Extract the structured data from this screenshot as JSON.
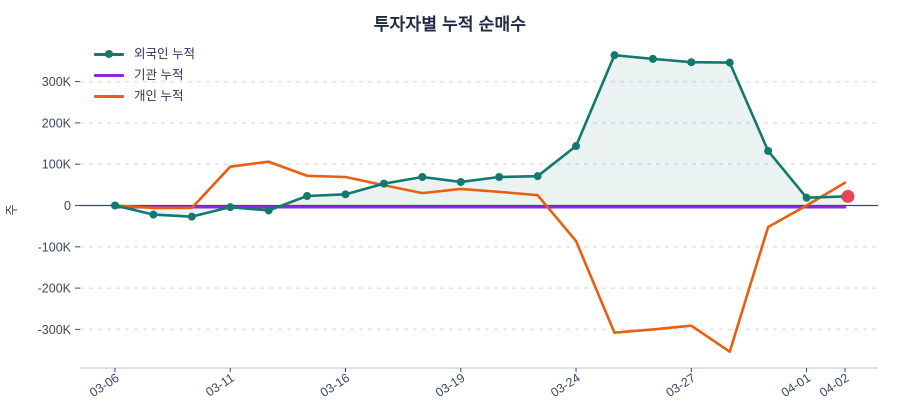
{
  "title_text": "투자자별 누적 순매수",
  "colors": {
    "foreign": "#12796e",
    "institution": "#8a2be2",
    "individual": "#e95f0e",
    "foreign_fill": "rgba(18,121,110,0.09)",
    "last_point": "#ea4556",
    "zero_line": "#3b4861",
    "grid": "#e4e6ea",
    "axis_line": "#c9cdd6",
    "tick_text": "#3c4860",
    "title_text": "#1e2942"
  },
  "chart_data": {
    "type": "line",
    "title": "투자자별 누적 순매수",
    "xlabel": "",
    "ylabel": "주",
    "grid": true,
    "legend_position": "upper left",
    "x": [
      "03-06",
      "03-09",
      "03-10",
      "03-11",
      "03-12",
      "03-13",
      "03-16",
      "03-17",
      "03-18",
      "03-19",
      "03-20",
      "03-23",
      "03-24",
      "03-25",
      "03-26",
      "03-27",
      "03-30",
      "03-31",
      "04-01",
      "04-02"
    ],
    "x_tick_labels": [
      "03-06",
      "03-11",
      "03-16",
      "03-19",
      "03-24",
      "03-27",
      "04-01",
      "04-02"
    ],
    "x_tick_indices": [
      0,
      3,
      6,
      9,
      12,
      15,
      18,
      19
    ],
    "y_tick_labels": [
      "300K",
      "200K",
      "100K",
      "0",
      "-100K",
      "-200K",
      "-300K"
    ],
    "y_tick_values": [
      300000,
      200000,
      100000,
      0,
      -100000,
      -200000,
      -300000
    ],
    "ylim": [
      -390000,
      400000
    ],
    "series": [
      {
        "name": "외국인 누적",
        "color": "#12796e",
        "marker": true,
        "fill_to_zero": true,
        "values": [
          0,
          -22000,
          -27000,
          -4000,
          -12000,
          23000,
          27000,
          53000,
          69000,
          57000,
          69000,
          71000,
          144000,
          364000,
          355000,
          347000,
          346000,
          132000,
          19000,
          22000
        ]
      },
      {
        "name": "기관 누적",
        "color": "#8a2be2",
        "marker": false,
        "fill_to_zero": false,
        "values": [
          -4000,
          -4000,
          -4000,
          -4000,
          -4000,
          -4000,
          -4000,
          -4000,
          -4000,
          -4000,
          -4000,
          -4000,
          -4000,
          -4000,
          -4000,
          -4000,
          -4000,
          -4000,
          -4000,
          -4000
        ]
      },
      {
        "name": "개인 누적",
        "color": "#e95f0e",
        "marker": false,
        "fill_to_zero": false,
        "values": [
          0,
          -6000,
          -6000,
          94000,
          106000,
          72000,
          69000,
          49000,
          30000,
          40000,
          33000,
          25000,
          -86000,
          -308000,
          -300000,
          -291000,
          -354000,
          -52000,
          0,
          55000
        ]
      }
    ],
    "last_point_highlight": {
      "series_index": 0,
      "point_index": 19,
      "color": "#ea4556"
    }
  }
}
